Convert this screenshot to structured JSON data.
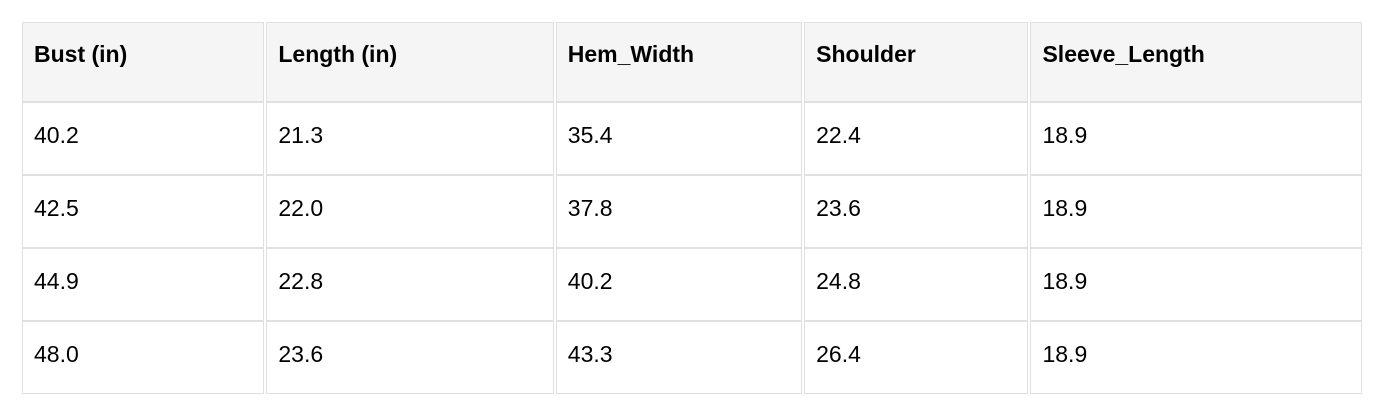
{
  "chart_data": {
    "type": "table",
    "columns": [
      "Bust (in)",
      "Length (in)",
      "Hem_Width",
      "Shoulder",
      "Sleeve_Length"
    ],
    "rows": [
      [
        "40.2",
        "21.3",
        "35.4",
        "22.4",
        "18.9"
      ],
      [
        "42.5",
        "22.0",
        "37.8",
        "23.6",
        "18.9"
      ],
      [
        "44.9",
        "22.8",
        "40.2",
        "24.8",
        "18.9"
      ],
      [
        "48.0",
        "23.6",
        "43.3",
        "26.4",
        "18.9"
      ]
    ]
  },
  "colors": {
    "header_bg": "#f5f5f5",
    "row_bg": "#ffffff",
    "border": "#e0e0e0",
    "text": "#000000"
  }
}
